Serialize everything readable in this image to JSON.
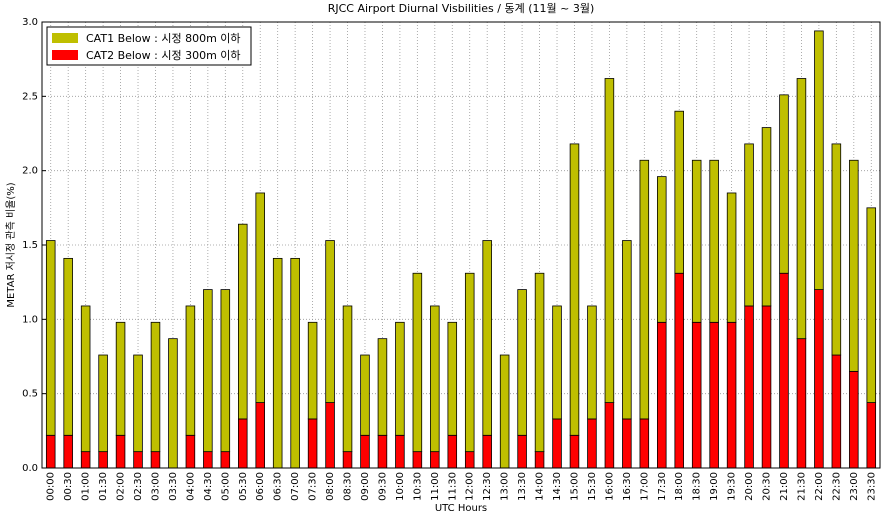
{
  "chart_data": {
    "type": "stacked-bar",
    "title": "RJCC Airport Diurnal Visbilities / 동계 (11월 ~ 3월)",
    "x_label": "UTC Hours",
    "y_label": "METAR 저시정 관측 비율(%)",
    "categories": [
      "00:00",
      "00:30",
      "01:00",
      "01:30",
      "02:00",
      "02:30",
      "03:00",
      "03:30",
      "04:00",
      "04:30",
      "05:00",
      "05:30",
      "06:00",
      "06:30",
      "07:00",
      "07:30",
      "08:00",
      "08:30",
      "09:00",
      "09:30",
      "10:00",
      "10:30",
      "11:00",
      "11:30",
      "12:00",
      "12:30",
      "13:00",
      "13:30",
      "14:00",
      "14:30",
      "15:00",
      "15:30",
      "16:00",
      "16:30",
      "17:00",
      "17:30",
      "18:00",
      "18:30",
      "19:00",
      "19:30",
      "20:00",
      "20:30",
      "21:00",
      "21:30",
      "22:00",
      "22:30",
      "23:00",
      "23:30"
    ],
    "series": [
      {
        "name": "CAT1 Below : 시정 800m 이하",
        "color": "#bfbf00",
        "values": [
          1.31,
          1.19,
          0.98,
          0.65,
          0.76,
          0.65,
          0.87,
          0.87,
          0.87,
          1.09,
          1.09,
          1.31,
          1.41,
          1.41,
          1.41,
          0.65,
          1.09,
          0.98,
          0.54,
          0.65,
          0.76,
          1.2,
          0.98,
          0.76,
          1.2,
          1.31,
          0.76,
          0.98,
          1.2,
          0.76,
          1.96,
          0.76,
          2.18,
          1.2,
          1.74,
          0.98,
          1.09,
          1.09,
          1.09,
          0.87,
          1.09,
          1.2,
          1.2,
          1.75,
          1.74,
          1.42,
          1.42,
          1.31
        ]
      },
      {
        "name": "CAT2 Below : 시정 300m 이하",
        "color": "#ff0000",
        "values": [
          0.22,
          0.22,
          0.11,
          0.11,
          0.22,
          0.11,
          0.11,
          0,
          0.22,
          0.11,
          0.11,
          0.33,
          0.44,
          0,
          0,
          0.33,
          0.44,
          0.11,
          0.22,
          0.22,
          0.22,
          0.11,
          0.11,
          0.22,
          0.11,
          0.22,
          0,
          0.22,
          0.11,
          0.33,
          0.22,
          0.33,
          0.44,
          0.33,
          0.33,
          0.98,
          1.31,
          0.98,
          0.98,
          0.98,
          1.09,
          1.09,
          1.31,
          0.87,
          1.2,
          0.76,
          0.65,
          0.44
        ]
      }
    ],
    "ylim": [
      0,
      3
    ],
    "yticks": [
      {
        "value": 0,
        "label": "0.0"
      },
      {
        "value": 0.5,
        "label": "0.5"
      },
      {
        "value": 1,
        "label": "1.0"
      },
      {
        "value": 1.5,
        "label": "1.5"
      },
      {
        "value": 2,
        "label": "2.0"
      },
      {
        "value": 2.5,
        "label": "2.5"
      },
      {
        "value": 3,
        "label": "3.0"
      }
    ],
    "grid": true,
    "legend": "upper-left"
  }
}
